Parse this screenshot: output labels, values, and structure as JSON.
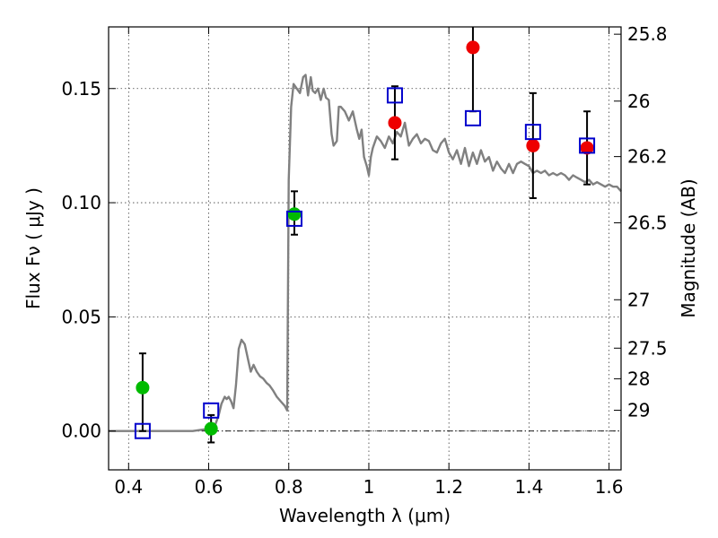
{
  "chart_data": {
    "type": "scatter",
    "xlabel": "Wavelength  λ (μm)",
    "ylabel": "Flux  Fν  ( μJy )",
    "right_ylabel": "Magnitude (AB)",
    "xlim": [
      0.35,
      1.63
    ],
    "ylim": [
      -0.017,
      0.177
    ],
    "x_ticks": [
      {
        "value": 0.4,
        "label": "0.4"
      },
      {
        "value": 0.6,
        "label": "0.6"
      },
      {
        "value": 0.8,
        "label": "0.8"
      },
      {
        "value": 1.0,
        "label": "1"
      },
      {
        "value": 1.2,
        "label": "1.2"
      },
      {
        "value": 1.4,
        "label": "1.4"
      },
      {
        "value": 1.6,
        "label": "1.6"
      }
    ],
    "y_ticks": [
      {
        "value": 0.0,
        "label": "0.00"
      },
      {
        "value": 0.05,
        "label": "0.05"
      },
      {
        "value": 0.1,
        "label": "0.10"
      },
      {
        "value": 0.15,
        "label": "0.15"
      }
    ],
    "right_ticks": [
      {
        "flux": 0.1738,
        "label": "25.8"
      },
      {
        "flux": 0.1445,
        "label": "26"
      },
      {
        "flux": 0.1202,
        "label": "26.2"
      },
      {
        "flux": 0.0912,
        "label": "26.5"
      },
      {
        "flux": 0.0575,
        "label": "27"
      },
      {
        "flux": 0.0363,
        "label": "27.5"
      },
      {
        "flux": 0.0229,
        "label": "28"
      },
      {
        "flux": 0.0091,
        "label": "29"
      }
    ],
    "grid": true,
    "colors": {
      "model": "#808080",
      "green": "#00bb00",
      "red": "#ee0000",
      "square": "#0000cc",
      "errorbar": "#000000"
    },
    "model_spectrum": {
      "x": [
        0.35,
        0.56,
        0.6,
        0.615,
        0.625,
        0.632,
        0.64,
        0.645,
        0.65,
        0.656,
        0.662,
        0.668,
        0.675,
        0.682,
        0.69,
        0.7,
        0.705,
        0.712,
        0.72,
        0.728,
        0.736,
        0.745,
        0.752,
        0.76,
        0.77,
        0.78,
        0.79,
        0.796,
        0.8,
        0.806,
        0.812,
        0.82,
        0.828,
        0.836,
        0.842,
        0.848,
        0.855,
        0.86,
        0.866,
        0.873,
        0.88,
        0.887,
        0.893,
        0.9,
        0.907,
        0.912,
        0.92,
        0.925,
        0.93,
        0.94,
        0.95,
        0.96,
        0.97,
        0.976,
        0.982,
        0.988,
        0.995,
        1.0,
        1.005,
        1.01,
        1.02,
        1.03,
        1.04,
        1.05,
        1.06,
        1.07,
        1.08,
        1.09,
        1.1,
        1.11,
        1.12,
        1.13,
        1.14,
        1.15,
        1.16,
        1.17,
        1.18,
        1.19,
        1.2,
        1.21,
        1.22,
        1.23,
        1.24,
        1.25,
        1.26,
        1.27,
        1.28,
        1.29,
        1.3,
        1.31,
        1.32,
        1.33,
        1.34,
        1.35,
        1.36,
        1.37,
        1.38,
        1.39,
        1.4,
        1.41,
        1.42,
        1.43,
        1.44,
        1.45,
        1.46,
        1.47,
        1.48,
        1.49,
        1.5,
        1.51,
        1.52,
        1.53,
        1.54,
        1.55,
        1.56,
        1.57,
        1.58,
        1.59,
        1.6,
        1.61,
        1.62,
        1.63
      ],
      "y": [
        0.0,
        0.0,
        0.001,
        0.002,
        0.007,
        0.012,
        0.015,
        0.014,
        0.015,
        0.013,
        0.01,
        0.02,
        0.036,
        0.04,
        0.038,
        0.03,
        0.026,
        0.029,
        0.026,
        0.024,
        0.023,
        0.021,
        0.02,
        0.018,
        0.015,
        0.013,
        0.011,
        0.009,
        0.11,
        0.142,
        0.152,
        0.15,
        0.148,
        0.155,
        0.156,
        0.147,
        0.155,
        0.149,
        0.148,
        0.15,
        0.145,
        0.15,
        0.146,
        0.145,
        0.13,
        0.125,
        0.127,
        0.142,
        0.142,
        0.14,
        0.136,
        0.14,
        0.132,
        0.128,
        0.132,
        0.12,
        0.116,
        0.112,
        0.12,
        0.124,
        0.129,
        0.127,
        0.124,
        0.129,
        0.126,
        0.131,
        0.129,
        0.135,
        0.125,
        0.128,
        0.13,
        0.126,
        0.128,
        0.127,
        0.123,
        0.122,
        0.126,
        0.128,
        0.122,
        0.119,
        0.123,
        0.117,
        0.124,
        0.116,
        0.122,
        0.117,
        0.123,
        0.118,
        0.12,
        0.114,
        0.118,
        0.115,
        0.113,
        0.117,
        0.113,
        0.117,
        0.118,
        0.117,
        0.116,
        0.113,
        0.114,
        0.113,
        0.114,
        0.112,
        0.113,
        0.112,
        0.113,
        0.112,
        0.11,
        0.112,
        0.111,
        0.11,
        0.109,
        0.11,
        0.108,
        0.109,
        0.108,
        0.107,
        0.108,
        0.107,
        0.107,
        0.105
      ]
    },
    "green_points": [
      {
        "x": 0.435,
        "y": 0.019,
        "yerr_low": 0.019,
        "yerr_high": 0.015
      },
      {
        "x": 0.606,
        "y": 0.001,
        "yerr_low": 0.006,
        "yerr_high": 0.006
      },
      {
        "x": 0.814,
        "y": 0.095,
        "yerr_low": 0.009,
        "yerr_high": 0.01
      }
    ],
    "red_points": [
      {
        "x": 1.065,
        "y": 0.135,
        "yerr_low": 0.016,
        "yerr_high": 0.016
      },
      {
        "x": 1.26,
        "y": 0.168,
        "yerr_low": 0.028,
        "yerr_high": 0.028
      },
      {
        "x": 1.41,
        "y": 0.125,
        "yerr_low": 0.023,
        "yerr_high": 0.023
      },
      {
        "x": 1.545,
        "y": 0.124,
        "yerr_low": 0.016,
        "yerr_high": 0.016
      }
    ],
    "model_photometry_squares": [
      {
        "x": 0.435,
        "y": 0.0
      },
      {
        "x": 0.606,
        "y": 0.009
      },
      {
        "x": 0.814,
        "y": 0.093
      },
      {
        "x": 1.065,
        "y": 0.147
      },
      {
        "x": 1.26,
        "y": 0.137
      },
      {
        "x": 1.41,
        "y": 0.131
      },
      {
        "x": 1.545,
        "y": 0.125
      }
    ]
  }
}
